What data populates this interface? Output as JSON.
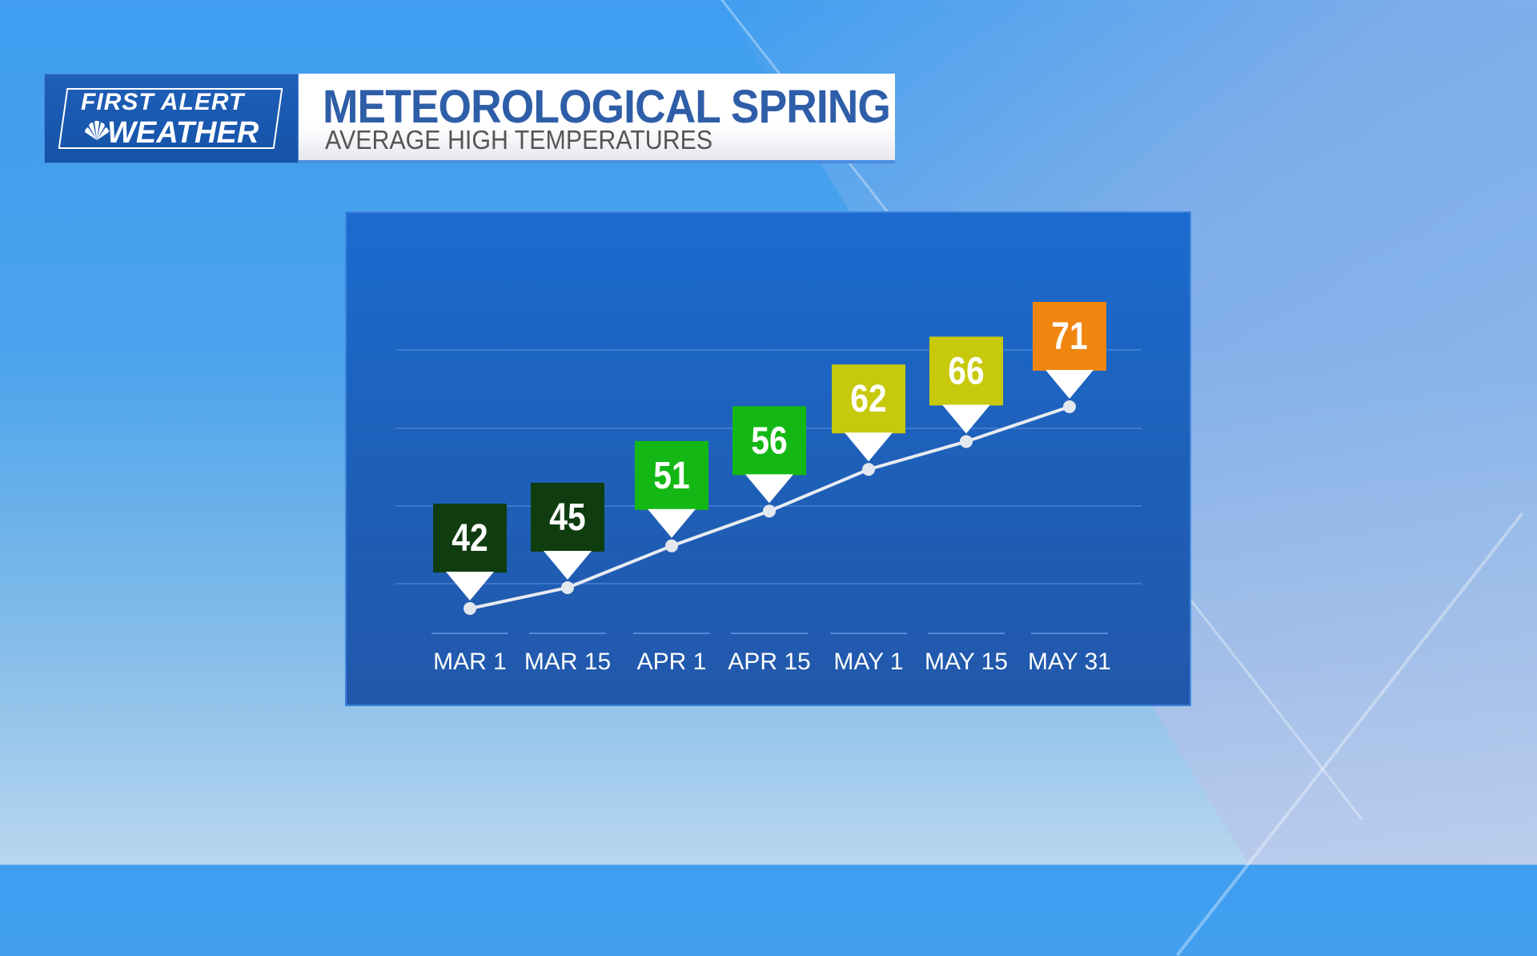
{
  "logo": {
    "line1": "FIRST ALERT",
    "line2": "WEATHER"
  },
  "header": {
    "title": "METEOROLOGICAL SPRING",
    "subtitle": "AVERAGE HIGH TEMPERATURES"
  },
  "chart_data": {
    "type": "line",
    "title": "METEOROLOGICAL SPRING",
    "subtitle": "AVERAGE HIGH TEMPERATURES",
    "categories": [
      "MAR 1",
      "MAR 15",
      "APR 1",
      "APR 15",
      "MAY 1",
      "MAY 15",
      "MAY 31"
    ],
    "values": [
      42,
      45,
      51,
      56,
      62,
      66,
      71
    ],
    "label_colors": [
      "#0f3d0f",
      "#0f3d0f",
      "#14b814",
      "#14b814",
      "#c7c90c",
      "#c7c90c",
      "#f0850f"
    ],
    "xlabel": "",
    "ylabel": "",
    "grid": true
  }
}
